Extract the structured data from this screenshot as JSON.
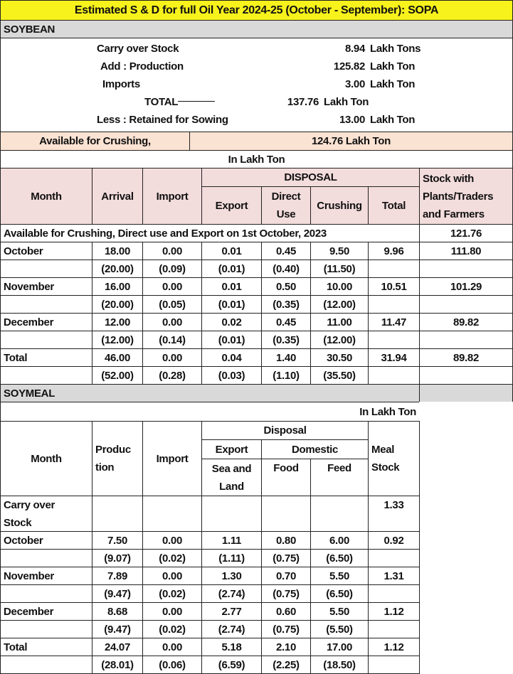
{
  "title": "Estimated S & D for full Oil Year 2024-25 (October - September): SOPA",
  "colors": {
    "title_bg": "#f7f21c",
    "section_bg": "#d9d9d9",
    "available_bg": "#fbe3d3",
    "header_bg": "#f3dcdc"
  },
  "soybean": {
    "section_label": "SOYBEAN",
    "summary": [
      {
        "label": "Carry over Stock",
        "value": "8.94",
        "unit": "Lakh Tons"
      },
      {
        "label": "Add : Production",
        "value": "125.82",
        "unit": "Lakh Ton"
      },
      {
        "label": "Imports",
        "value": "3.00",
        "unit": "Lakh Ton"
      },
      {
        "label": "TOTAL",
        "value": "137.76",
        "unit": "Lakh Ton"
      },
      {
        "label": "Less : Retained for Sowing",
        "value": "13.00",
        "unit": "Lakh Ton"
      }
    ],
    "available_label": "Available for Crushing,",
    "available_value": "124.76  Lakh Ton",
    "unit_note": "In Lakh Ton",
    "headers": {
      "month": "Month",
      "arrival": "Arrival",
      "import": "Import",
      "disposal": "DISPOSAL",
      "export": "Export",
      "direct_use": "Direct\nUse",
      "crushing": "Crushing",
      "total": "Total",
      "stock": "Stock with\nPlants/Traders\nand Farmers"
    },
    "opening_label": "Available for Crushing, Direct use and Export on 1st October, 2023",
    "opening_value": "121.76",
    "rows": [
      {
        "month": "October",
        "cur": [
          "18.00",
          "0.00",
          "0.01",
          "0.45",
          "9.50",
          "9.96",
          "111.80"
        ],
        "prev": [
          "(20.00)",
          "(0.09)",
          "(0.01)",
          "(0.40)",
          "(11.50)",
          "",
          ""
        ]
      },
      {
        "month": "November",
        "cur": [
          "16.00",
          "0.00",
          "0.01",
          "0.50",
          "10.00",
          "10.51",
          "101.29"
        ],
        "prev": [
          "(20.00)",
          "(0.05)",
          "(0.01)",
          "(0.35)",
          "(12.00)",
          "",
          ""
        ]
      },
      {
        "month": "December",
        "cur": [
          "12.00",
          "0.00",
          "0.02",
          "0.45",
          "11.00",
          "11.47",
          "89.82"
        ],
        "prev": [
          "(12.00)",
          "(0.14)",
          "(0.01)",
          "(0.35)",
          "(12.00)",
          "",
          ""
        ]
      },
      {
        "month": "Total",
        "cur": [
          "46.00",
          "0.00",
          "0.04",
          "1.40",
          "30.50",
          "31.94",
          "89.82"
        ],
        "prev": [
          "(52.00)",
          "(0.28)",
          "(0.03)",
          "(1.10)",
          "(35.50)",
          "",
          ""
        ]
      }
    ]
  },
  "soymeal": {
    "section_label": "SOYMEAL",
    "unit_note": "In Lakh Ton",
    "headers": {
      "month": "Month",
      "production": "Produc\ntion",
      "import": "Import",
      "disposal": "Disposal",
      "export": "Export",
      "domestic": "Domestic",
      "sea_land": "Sea and\nLand",
      "food": "Food",
      "feed": "Feed",
      "meal_stock": "Meal\nStock"
    },
    "carry_over_label": "Carry over\nStock",
    "carry_over_value": "1.33",
    "rows": [
      {
        "month": "October",
        "cur": [
          "7.50",
          "0.00",
          "1.11",
          "0.80",
          "6.00",
          "0.92"
        ],
        "prev": [
          "(9.07)",
          "(0.02)",
          "(1.11)",
          "(0.75)",
          "(6.50)",
          ""
        ]
      },
      {
        "month": "November",
        "cur": [
          "7.89",
          "0.00",
          "1.30",
          "0.70",
          "5.50",
          "1.31"
        ],
        "prev": [
          "(9.47)",
          "(0.02)",
          "(2.74)",
          "(0.75)",
          "(6.50)",
          ""
        ]
      },
      {
        "month": "December",
        "cur": [
          "8.68",
          "0.00",
          "2.77",
          "0.60",
          "5.50",
          "1.12"
        ],
        "prev": [
          "(9.47)",
          "(0.02)",
          "(2.74)",
          "(0.75)",
          "(5.50)",
          ""
        ]
      },
      {
        "month": "Total",
        "cur": [
          "24.07",
          "0.00",
          "5.18",
          "2.10",
          "17.00",
          "1.12"
        ],
        "prev": [
          "(28.01)",
          "(0.06)",
          "(6.59)",
          "(2.25)",
          "(18.50)",
          ""
        ]
      }
    ]
  }
}
